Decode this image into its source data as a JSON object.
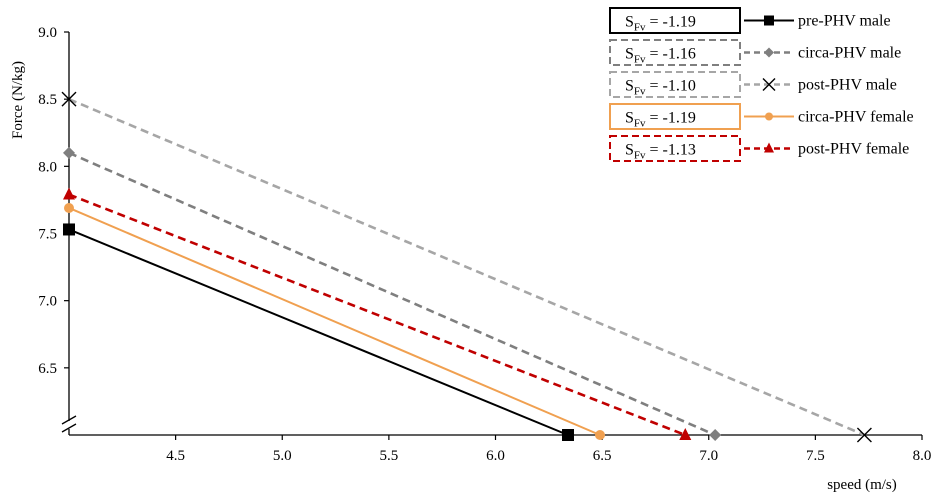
{
  "chart_data": {
    "type": "line",
    "xlabel": "speed (m/s)",
    "ylabel": "Force (N/kg)",
    "xlim": [
      4.0,
      8.0
    ],
    "ylim": [
      6.0,
      9.0
    ],
    "xticks": [
      "4.5",
      "5.0",
      "5.5",
      "6.0",
      "6.5",
      "7.0",
      "7.5",
      "8.0"
    ],
    "yticks": [
      "6.5",
      "7.0",
      "7.5",
      "8.0",
      "8.5",
      "9.0"
    ],
    "axis_break": "y",
    "grid": false,
    "legend_position": "top-right",
    "series": [
      {
        "name": "pre-PHV male",
        "slope_label": "= -1.19",
        "slope_sub": "Fv",
        "x": [
          4.0,
          6.34
        ],
        "y": [
          7.53,
          6.0
        ],
        "color": "#000000",
        "dash": "solid",
        "marker": "square"
      },
      {
        "name": "circa-PHV male",
        "slope_label": "= -1.16",
        "slope_sub": "Fv",
        "x": [
          4.0,
          7.03
        ],
        "y": [
          8.1,
          6.0
        ],
        "color": "#7f7f7f",
        "dash": "dashed",
        "marker": "diamond"
      },
      {
        "name": "post-PHV male",
        "slope_label": "= -1.10",
        "slope_sub": "Fv",
        "x": [
          4.0,
          7.73
        ],
        "y": [
          8.5,
          6.0
        ],
        "color": "#a6a6a6",
        "dash": "dashed",
        "marker": "x"
      },
      {
        "name": "circa-PHV female",
        "slope_label": "= -1.19",
        "slope_sub": "Fv",
        "x": [
          4.0,
          6.49
        ],
        "y": [
          7.69,
          6.0
        ],
        "color": "#f0a050",
        "dash": "solid",
        "marker": "circle"
      },
      {
        "name": "post-PHV female",
        "slope_label": "= -1.13",
        "slope_sub": "Fv",
        "x": [
          4.0,
          6.89
        ],
        "y": [
          7.79,
          6.0
        ],
        "color": "#c00000",
        "dash": "dashed",
        "marker": "triangle"
      }
    ]
  }
}
